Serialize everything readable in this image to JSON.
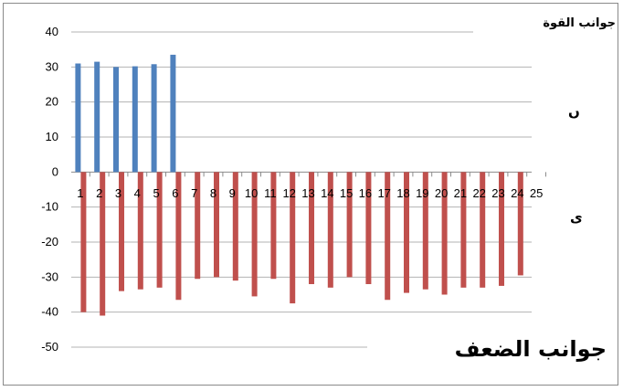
{
  "chart_data": {
    "type": "bar",
    "categories": [
      "1",
      "2",
      "3",
      "4",
      "5",
      "6",
      "7",
      "8",
      "9",
      "10",
      "11",
      "12",
      "13",
      "14",
      "15",
      "16",
      "17",
      "18",
      "19",
      "20",
      "21",
      "22",
      "23",
      "24",
      "25"
    ],
    "series": [
      {
        "color": "#4f81bd",
        "values": [
          31,
          31.5,
          30,
          30.2,
          30.8,
          33.5,
          null,
          null,
          null,
          null,
          null,
          null,
          null,
          null,
          null,
          null,
          null,
          null,
          null,
          null,
          null,
          null,
          null,
          null,
          null
        ]
      },
      {
        "color": "#c0504d",
        "values": [
          -40,
          -41,
          -34,
          -33.5,
          -33,
          -36.5,
          -30.5,
          -30,
          -31,
          -35.5,
          -30.5,
          -37.5,
          -32,
          -33,
          -30,
          -32,
          -36.5,
          -34.5,
          -33.5,
          -35,
          -33,
          -33,
          -32.5,
          -29.5,
          null
        ]
      }
    ],
    "yticks": [
      40,
      30,
      20,
      10,
      0,
      -10,
      -20,
      -30,
      -40,
      -50
    ],
    "ylim": [
      -50,
      40
    ],
    "grid": "horizontal"
  },
  "annotations": {
    "strengths": "جوانب القوة",
    "right_top_letter": "ں",
    "right_mid_letter": "ى",
    "weaknesses": "جوانب الضعف"
  }
}
